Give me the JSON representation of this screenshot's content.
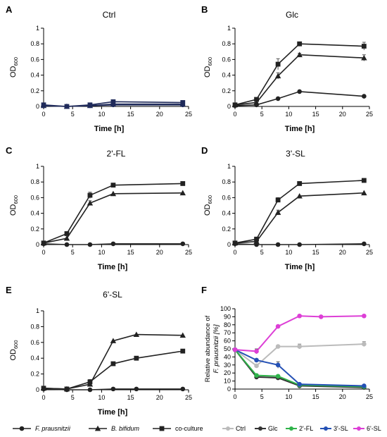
{
  "chart_data": [
    {
      "panel": "A",
      "type": "line",
      "title": "Ctrl",
      "xlabel": "Time [h]",
      "ylabel": "OD",
      "ylabel_sub": "600",
      "xlim": [
        0,
        25
      ],
      "ylim": [
        0,
        1
      ],
      "xticks": [
        "0",
        "5",
        "10",
        "15",
        "20",
        "25"
      ],
      "yticks": [
        "0",
        "0.2",
        "0.4",
        "0.6",
        "0.8",
        "1"
      ],
      "x": [
        0,
        4,
        8,
        12,
        24
      ],
      "color": "#1f2a5a",
      "series": [
        {
          "marker": "circle",
          "values": [
            0.01,
            0.0,
            0.01,
            0.02,
            0.02
          ],
          "errors": [
            0,
            0,
            0,
            0,
            0
          ]
        },
        {
          "marker": "triangle",
          "values": [
            0.01,
            0.0,
            0.01,
            0.03,
            0.03
          ],
          "errors": [
            0,
            0,
            0,
            0,
            0
          ]
        },
        {
          "marker": "square",
          "values": [
            0.02,
            0.0,
            0.02,
            0.06,
            0.05
          ],
          "errors": [
            0,
            0,
            0,
            0,
            0
          ]
        }
      ]
    },
    {
      "panel": "B",
      "type": "line",
      "title": "Glc",
      "xlabel": "Time [h]",
      "ylabel": "OD",
      "ylabel_sub": "600",
      "xlim": [
        0,
        25
      ],
      "ylim": [
        0,
        1
      ],
      "xticks": [
        "0",
        "5",
        "10",
        "15",
        "20",
        "25"
      ],
      "yticks": [
        "0",
        "0.2",
        "0.4",
        "0.6",
        "0.8",
        "1"
      ],
      "x": [
        0,
        4,
        8,
        12,
        24
      ],
      "color": "#222222",
      "series": [
        {
          "marker": "circle",
          "values": [
            0.01,
            0.02,
            0.1,
            0.19,
            0.13
          ],
          "errors": [
            0,
            0,
            0,
            0,
            0
          ]
        },
        {
          "marker": "triangle",
          "values": [
            0.02,
            0.05,
            0.39,
            0.66,
            0.62
          ],
          "errors": [
            0,
            0,
            0.04,
            0.02,
            0.04
          ]
        },
        {
          "marker": "square",
          "values": [
            0.02,
            0.09,
            0.54,
            0.8,
            0.77
          ],
          "errors": [
            0,
            0,
            0.07,
            0,
            0.05
          ]
        }
      ]
    },
    {
      "panel": "C",
      "type": "line",
      "title": "2'-FL",
      "xlabel": "Time [h]",
      "ylabel": "OD",
      "ylabel_sub": "600",
      "xlim": [
        0,
        25
      ],
      "ylim": [
        0,
        1
      ],
      "xticks": [
        "0",
        "5",
        "10",
        "15",
        "20",
        "25"
      ],
      "yticks": [
        "0",
        "0.2",
        "0.4",
        "0.6",
        "0.8",
        "1"
      ],
      "x": [
        0,
        4,
        8,
        12,
        24
      ],
      "color": "#222222",
      "series": [
        {
          "marker": "circle",
          "values": [
            0.01,
            0.0,
            0.0,
            0.01,
            0.01
          ],
          "errors": [
            0,
            0,
            0,
            0,
            0
          ]
        },
        {
          "marker": "triangle",
          "values": [
            0.02,
            0.08,
            0.53,
            0.65,
            0.66
          ],
          "errors": [
            0,
            0,
            0.03,
            0,
            0
          ]
        },
        {
          "marker": "square",
          "values": [
            0.02,
            0.14,
            0.63,
            0.76,
            0.78
          ],
          "errors": [
            0,
            0.02,
            0.04,
            0,
            0
          ]
        }
      ]
    },
    {
      "panel": "D",
      "type": "line",
      "title": "3'-SL",
      "xlabel": "Time [h]",
      "ylabel": "OD",
      "ylabel_sub": "600",
      "xlim": [
        0,
        25
      ],
      "ylim": [
        0,
        1
      ],
      "xticks": [
        "0",
        "5",
        "10",
        "15",
        "20",
        "25"
      ],
      "yticks": [
        "0",
        "0.2",
        "0.4",
        "0.6",
        "0.8",
        "1"
      ],
      "x": [
        0,
        4,
        8,
        12,
        24
      ],
      "color": "#222222",
      "series": [
        {
          "marker": "circle",
          "values": [
            0.01,
            0.0,
            0.0,
            0.0,
            0.01
          ],
          "errors": [
            0,
            0,
            0,
            0,
            0
          ]
        },
        {
          "marker": "triangle",
          "values": [
            0.02,
            0.04,
            0.41,
            0.62,
            0.66
          ],
          "errors": [
            0,
            0,
            0.03,
            0,
            0
          ]
        },
        {
          "marker": "square",
          "values": [
            0.02,
            0.07,
            0.57,
            0.78,
            0.82
          ],
          "errors": [
            0,
            0,
            0.03,
            0,
            0
          ]
        }
      ]
    },
    {
      "panel": "E",
      "type": "line",
      "title": "6'-SL",
      "xlabel": "Time [h]",
      "ylabel": "OD",
      "ylabel_sub": "600",
      "xlim": [
        0,
        25
      ],
      "ylim": [
        0,
        1
      ],
      "xticks": [
        "0",
        "5",
        "10",
        "15",
        "20",
        "25"
      ],
      "yticks": [
        "0",
        "0.2",
        "0.4",
        "0.6",
        "0.8",
        "1"
      ],
      "x": [
        0,
        4,
        8,
        12,
        16,
        24
      ],
      "color": "#222222",
      "series": [
        {
          "marker": "circle",
          "values": [
            0.01,
            0.0,
            0.0,
            0.01,
            0.01,
            0.01
          ],
          "errors": [
            0,
            0,
            0,
            0,
            0,
            0
          ]
        },
        {
          "marker": "triangle",
          "values": [
            0.02,
            0.01,
            0.07,
            0.62,
            0.7,
            0.69
          ],
          "errors": [
            0,
            0,
            0.02,
            0,
            0,
            0
          ]
        },
        {
          "marker": "square",
          "values": [
            0.02,
            0.01,
            0.1,
            0.33,
            0.4,
            0.49
          ],
          "errors": [
            0,
            0,
            0.03,
            0,
            0,
            0
          ]
        }
      ]
    },
    {
      "panel": "F",
      "type": "line",
      "title": "",
      "xlabel": "",
      "ylabel": "Relative abundance of",
      "ylabel2": "F. prausnitzii [%]",
      "xlim": [
        0,
        25
      ],
      "ylim": [
        0,
        100
      ],
      "xticks": [
        "0",
        "5",
        "10",
        "15",
        "20",
        "25"
      ],
      "yticks": [
        "0",
        "10",
        "20",
        "30",
        "40",
        "50",
        "60",
        "70",
        "80",
        "90",
        "100"
      ],
      "series": [
        {
          "name": "Ctrl",
          "color": "#bbbbbb",
          "x": [
            0,
            4,
            8,
            12,
            24
          ],
          "values": [
            49,
            29,
            53,
            53,
            56
          ],
          "errors": [
            0,
            0,
            0,
            3,
            3
          ]
        },
        {
          "name": "Glc",
          "color": "#333333",
          "x": [
            0,
            4,
            8,
            12,
            24
          ],
          "values": [
            49,
            15,
            14,
            4,
            2
          ],
          "errors": [
            0,
            0,
            0,
            0,
            0
          ]
        },
        {
          "name": "2'-FL",
          "color": "#2fb34a",
          "x": [
            0,
            4,
            8,
            12,
            24
          ],
          "values": [
            49,
            17,
            16,
            5,
            3
          ],
          "errors": [
            0,
            0,
            0,
            0,
            0
          ]
        },
        {
          "name": "3'-SL",
          "color": "#2450b5",
          "x": [
            0,
            4,
            8,
            12,
            24
          ],
          "values": [
            49,
            36,
            30,
            6,
            4
          ],
          "errors": [
            0,
            0,
            4,
            0,
            0
          ]
        },
        {
          "name": "6'-SL",
          "color": "#dd3fd6",
          "x": [
            0,
            4,
            8,
            12,
            16,
            24
          ],
          "values": [
            49,
            47,
            78,
            91,
            90,
            91
          ],
          "errors": [
            0,
            3,
            0,
            0,
            0,
            0
          ]
        }
      ]
    }
  ],
  "legend": [
    {
      "label": "F. prausnitzii",
      "marker": "circle",
      "italic": true
    },
    {
      "label": "B. bifidum",
      "marker": "triangle",
      "italic": true
    },
    {
      "label": "co-culture",
      "marker": "square",
      "italic": false
    }
  ]
}
